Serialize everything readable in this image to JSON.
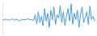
{
  "chart_data": {
    "type": "line",
    "color": "#4a9bd6",
    "tick_labels": false,
    "grid": false,
    "x": [
      1,
      2,
      3,
      4,
      5,
      6,
      7,
      8,
      9,
      10,
      11,
      12,
      13,
      14,
      15,
      16,
      17,
      18,
      19,
      20,
      21,
      22,
      23,
      24,
      25,
      26,
      27,
      28,
      29,
      30,
      31,
      32,
      33,
      34,
      35,
      36,
      37,
      38,
      39,
      40,
      41,
      42,
      43,
      44,
      45,
      46,
      47,
      48,
      49,
      50,
      51,
      52,
      53,
      54,
      55,
      56,
      57,
      58,
      59,
      60
    ],
    "values": [
      45,
      44,
      46,
      45,
      43,
      44,
      47,
      45,
      44,
      46,
      45,
      40,
      46,
      45,
      44,
      45,
      47,
      46,
      44,
      45,
      42,
      60,
      30,
      70,
      35,
      55,
      25,
      80,
      40,
      65,
      20,
      75,
      45,
      85,
      30,
      60,
      50,
      90,
      35,
      70,
      25,
      55,
      80,
      40,
      95,
      30,
      65,
      45,
      75,
      20,
      60,
      85,
      35,
      50,
      70,
      30,
      88,
      45,
      55,
      40
    ],
    "xlim": [
      1,
      60
    ],
    "ylim": [
      0,
      100
    ]
  }
}
